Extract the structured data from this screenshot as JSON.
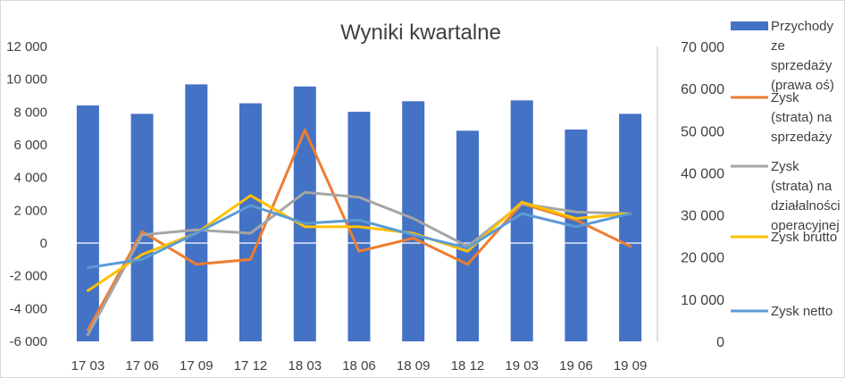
{
  "chart_data": {
    "type": "bar",
    "title": "Wyniki kwartalne",
    "categories": [
      "17 03",
      "17 06",
      "17 09",
      "17 12",
      "18 03",
      "18 06",
      "18 09",
      "18 12",
      "19 03",
      "19 06",
      "19 09"
    ],
    "y_left": {
      "ylim": [
        -6000,
        12000
      ],
      "ticks": [
        -6000,
        -4000,
        -2000,
        0,
        2000,
        4000,
        6000,
        8000,
        10000,
        12000
      ],
      "tick_labels": [
        "-6 000",
        "-4 000",
        "-2 000",
        "0",
        "2 000",
        "4 000",
        "6 000",
        "8 000",
        "10 000",
        "12 000"
      ]
    },
    "y_right": {
      "ylim": [
        0,
        70000
      ],
      "ticks": [
        0,
        10000,
        20000,
        30000,
        40000,
        50000,
        60000,
        70000
      ],
      "tick_labels": [
        "0",
        "10 000",
        "20 000",
        "30 000",
        "40 000",
        "50 000",
        "60 000",
        "70 000"
      ]
    },
    "grid": false,
    "legend_position": "right",
    "series": [
      {
        "name": "Przychody ze sprzedaży (prawa oś)",
        "legend_lines": [
          "Przychody",
          "ze",
          "sprzedaży",
          "(prawa oś)"
        ],
        "kind": "bar",
        "axis": "right",
        "color": "#4472c4",
        "values": [
          56000,
          54000,
          61000,
          56500,
          60500,
          54500,
          57000,
          50000,
          57200,
          50300,
          54000
        ]
      },
      {
        "name": "Zysk (strata) na sprzedaży",
        "legend_lines": [
          "Zysk",
          "(strata) na",
          "sprzedaży"
        ],
        "kind": "line",
        "axis": "left",
        "color": "#ed7d31",
        "values": [
          -5300,
          700,
          -1300,
          -1000,
          6900,
          -500,
          300,
          -1300,
          2400,
          1400,
          -200
        ]
      },
      {
        "name": "Zysk (strata) na działalności operacyjnej",
        "legend_lines": [
          "Zysk",
          "(strata) na",
          "działalności",
          "operacyjnej"
        ],
        "kind": "line",
        "axis": "left",
        "color": "#a5a5a5",
        "values": [
          -5600,
          500,
          800,
          600,
          3100,
          2800,
          1500,
          -200,
          2400,
          1900,
          1800
        ]
      },
      {
        "name": "Zysk brutto",
        "legend_lines": [
          "Zysk brutto"
        ],
        "kind": "line",
        "axis": "left",
        "color": "#ffc000",
        "values": [
          -2900,
          -700,
          600,
          2900,
          1000,
          1000,
          600,
          -500,
          2500,
          1500,
          1800
        ]
      },
      {
        "name": "Zysk netto",
        "legend_lines": [
          "Zysk netto"
        ],
        "kind": "line",
        "axis": "left",
        "color": "#5b9bd5",
        "values": [
          -1500,
          -1000,
          600,
          2300,
          1200,
          1400,
          500,
          -300,
          1800,
          1000,
          1800
        ]
      }
    ]
  }
}
